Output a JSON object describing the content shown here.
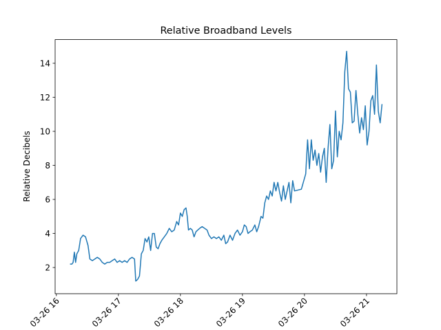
{
  "chart_data": {
    "type": "line",
    "title": "Relative Broadband Levels",
    "y_label": "Relative Decibels",
    "color": "#1f77b4",
    "x": [
      16.22,
      16.25,
      16.27,
      16.29,
      16.31,
      16.33,
      16.36,
      16.39,
      16.43,
      16.47,
      16.51,
      16.54,
      16.58,
      16.62,
      16.66,
      16.7,
      16.74,
      16.78,
      16.82,
      16.86,
      16.9,
      16.94,
      16.98,
      17.02,
      17.06,
      17.1,
      17.14,
      17.18,
      17.22,
      17.26,
      17.28,
      17.31,
      17.34,
      17.37,
      17.4,
      17.43,
      17.46,
      17.49,
      17.52,
      17.55,
      17.58,
      17.61,
      17.64,
      17.67,
      17.7,
      17.74,
      17.78,
      17.82,
      17.86,
      17.9,
      17.94,
      17.97,
      18.0,
      18.03,
      18.06,
      18.09,
      18.11,
      18.13,
      18.16,
      18.19,
      18.22,
      18.25,
      18.28,
      18.31,
      18.35,
      18.39,
      18.43,
      18.46,
      18.5,
      18.54,
      18.58,
      18.62,
      18.66,
      18.7,
      18.73,
      18.76,
      18.8,
      18.84,
      18.88,
      18.92,
      18.96,
      19.0,
      19.03,
      19.06,
      19.09,
      19.12,
      19.16,
      19.2,
      19.23,
      19.26,
      19.3,
      19.33,
      19.36,
      19.39,
      19.42,
      19.45,
      19.48,
      19.51,
      19.54,
      19.57,
      19.6,
      19.63,
      19.66,
      19.69,
      19.72,
      19.75,
      19.78,
      19.81,
      19.84,
      19.95,
      20.02,
      20.05,
      20.08,
      20.11,
      20.14,
      20.17,
      20.2,
      20.23,
      20.26,
      20.29,
      20.32,
      20.35,
      20.38,
      20.41,
      20.44,
      20.47,
      20.5,
      20.53,
      20.56,
      20.59,
      20.62,
      20.65,
      20.68,
      20.71,
      20.74,
      20.77,
      20.8,
      20.83,
      20.86,
      20.89,
      20.92,
      20.95,
      20.98,
      21.01,
      21.04,
      21.07,
      21.1,
      21.13,
      21.16,
      21.19,
      21.22,
      21.25
    ],
    "values": [
      2.2,
      2.2,
      2.3,
      2.9,
      2.3,
      2.8,
      3.0,
      3.7,
      3.9,
      3.8,
      3.3,
      2.5,
      2.4,
      2.5,
      2.6,
      2.5,
      2.3,
      2.2,
      2.3,
      2.3,
      2.4,
      2.5,
      2.3,
      2.4,
      2.3,
      2.4,
      2.3,
      2.5,
      2.6,
      2.5,
      1.2,
      1.3,
      1.5,
      2.8,
      3.0,
      3.7,
      3.5,
      3.8,
      3.0,
      4.0,
      4.0,
      3.2,
      3.1,
      3.4,
      3.6,
      3.8,
      4.0,
      4.3,
      4.1,
      4.2,
      4.7,
      4.5,
      5.2,
      5.0,
      5.4,
      5.5,
      5.0,
      4.2,
      4.3,
      4.2,
      3.8,
      4.1,
      4.2,
      4.3,
      4.4,
      4.3,
      4.2,
      3.9,
      3.7,
      3.8,
      3.7,
      3.8,
      3.6,
      3.9,
      3.4,
      3.5,
      3.9,
      3.6,
      4.0,
      4.2,
      3.9,
      4.1,
      4.5,
      4.4,
      4.0,
      4.1,
      4.2,
      4.5,
      4.1,
      4.4,
      5.0,
      4.9,
      5.8,
      6.2,
      6.0,
      6.5,
      6.2,
      7.0,
      6.5,
      7.0,
      6.4,
      5.9,
      6.8,
      6.0,
      6.5,
      7.0,
      5.8,
      7.1,
      6.5,
      6.6,
      7.5,
      9.5,
      7.8,
      9.5,
      8.3,
      8.9,
      8.0,
      8.7,
      7.6,
      8.5,
      9.0,
      7.0,
      9.0,
      10.4,
      7.8,
      8.3,
      11.2,
      8.5,
      10.0,
      9.5,
      10.5,
      13.5,
      14.7,
      12.5,
      12.3,
      10.5,
      10.6,
      12.4,
      11.0,
      9.9,
      10.8,
      10.1,
      11.5,
      9.2,
      10.0,
      11.8,
      12.1,
      11.0,
      13.9,
      11.2,
      10.5,
      11.6
    ],
    "xlim": [
      15.98,
      21.49
    ],
    "ylim": [
      0.46,
      15.39
    ],
    "xticks": [
      {
        "value": 16,
        "label": "03-26 16"
      },
      {
        "value": 17,
        "label": "03-26 17"
      },
      {
        "value": 18,
        "label": "03-26 18"
      },
      {
        "value": 19,
        "label": "03-26 19"
      },
      {
        "value": 20,
        "label": "03-26 20"
      },
      {
        "value": 21,
        "label": "03-26 21"
      }
    ],
    "yticks": [
      2,
      4,
      6,
      8,
      10,
      12,
      14
    ]
  }
}
